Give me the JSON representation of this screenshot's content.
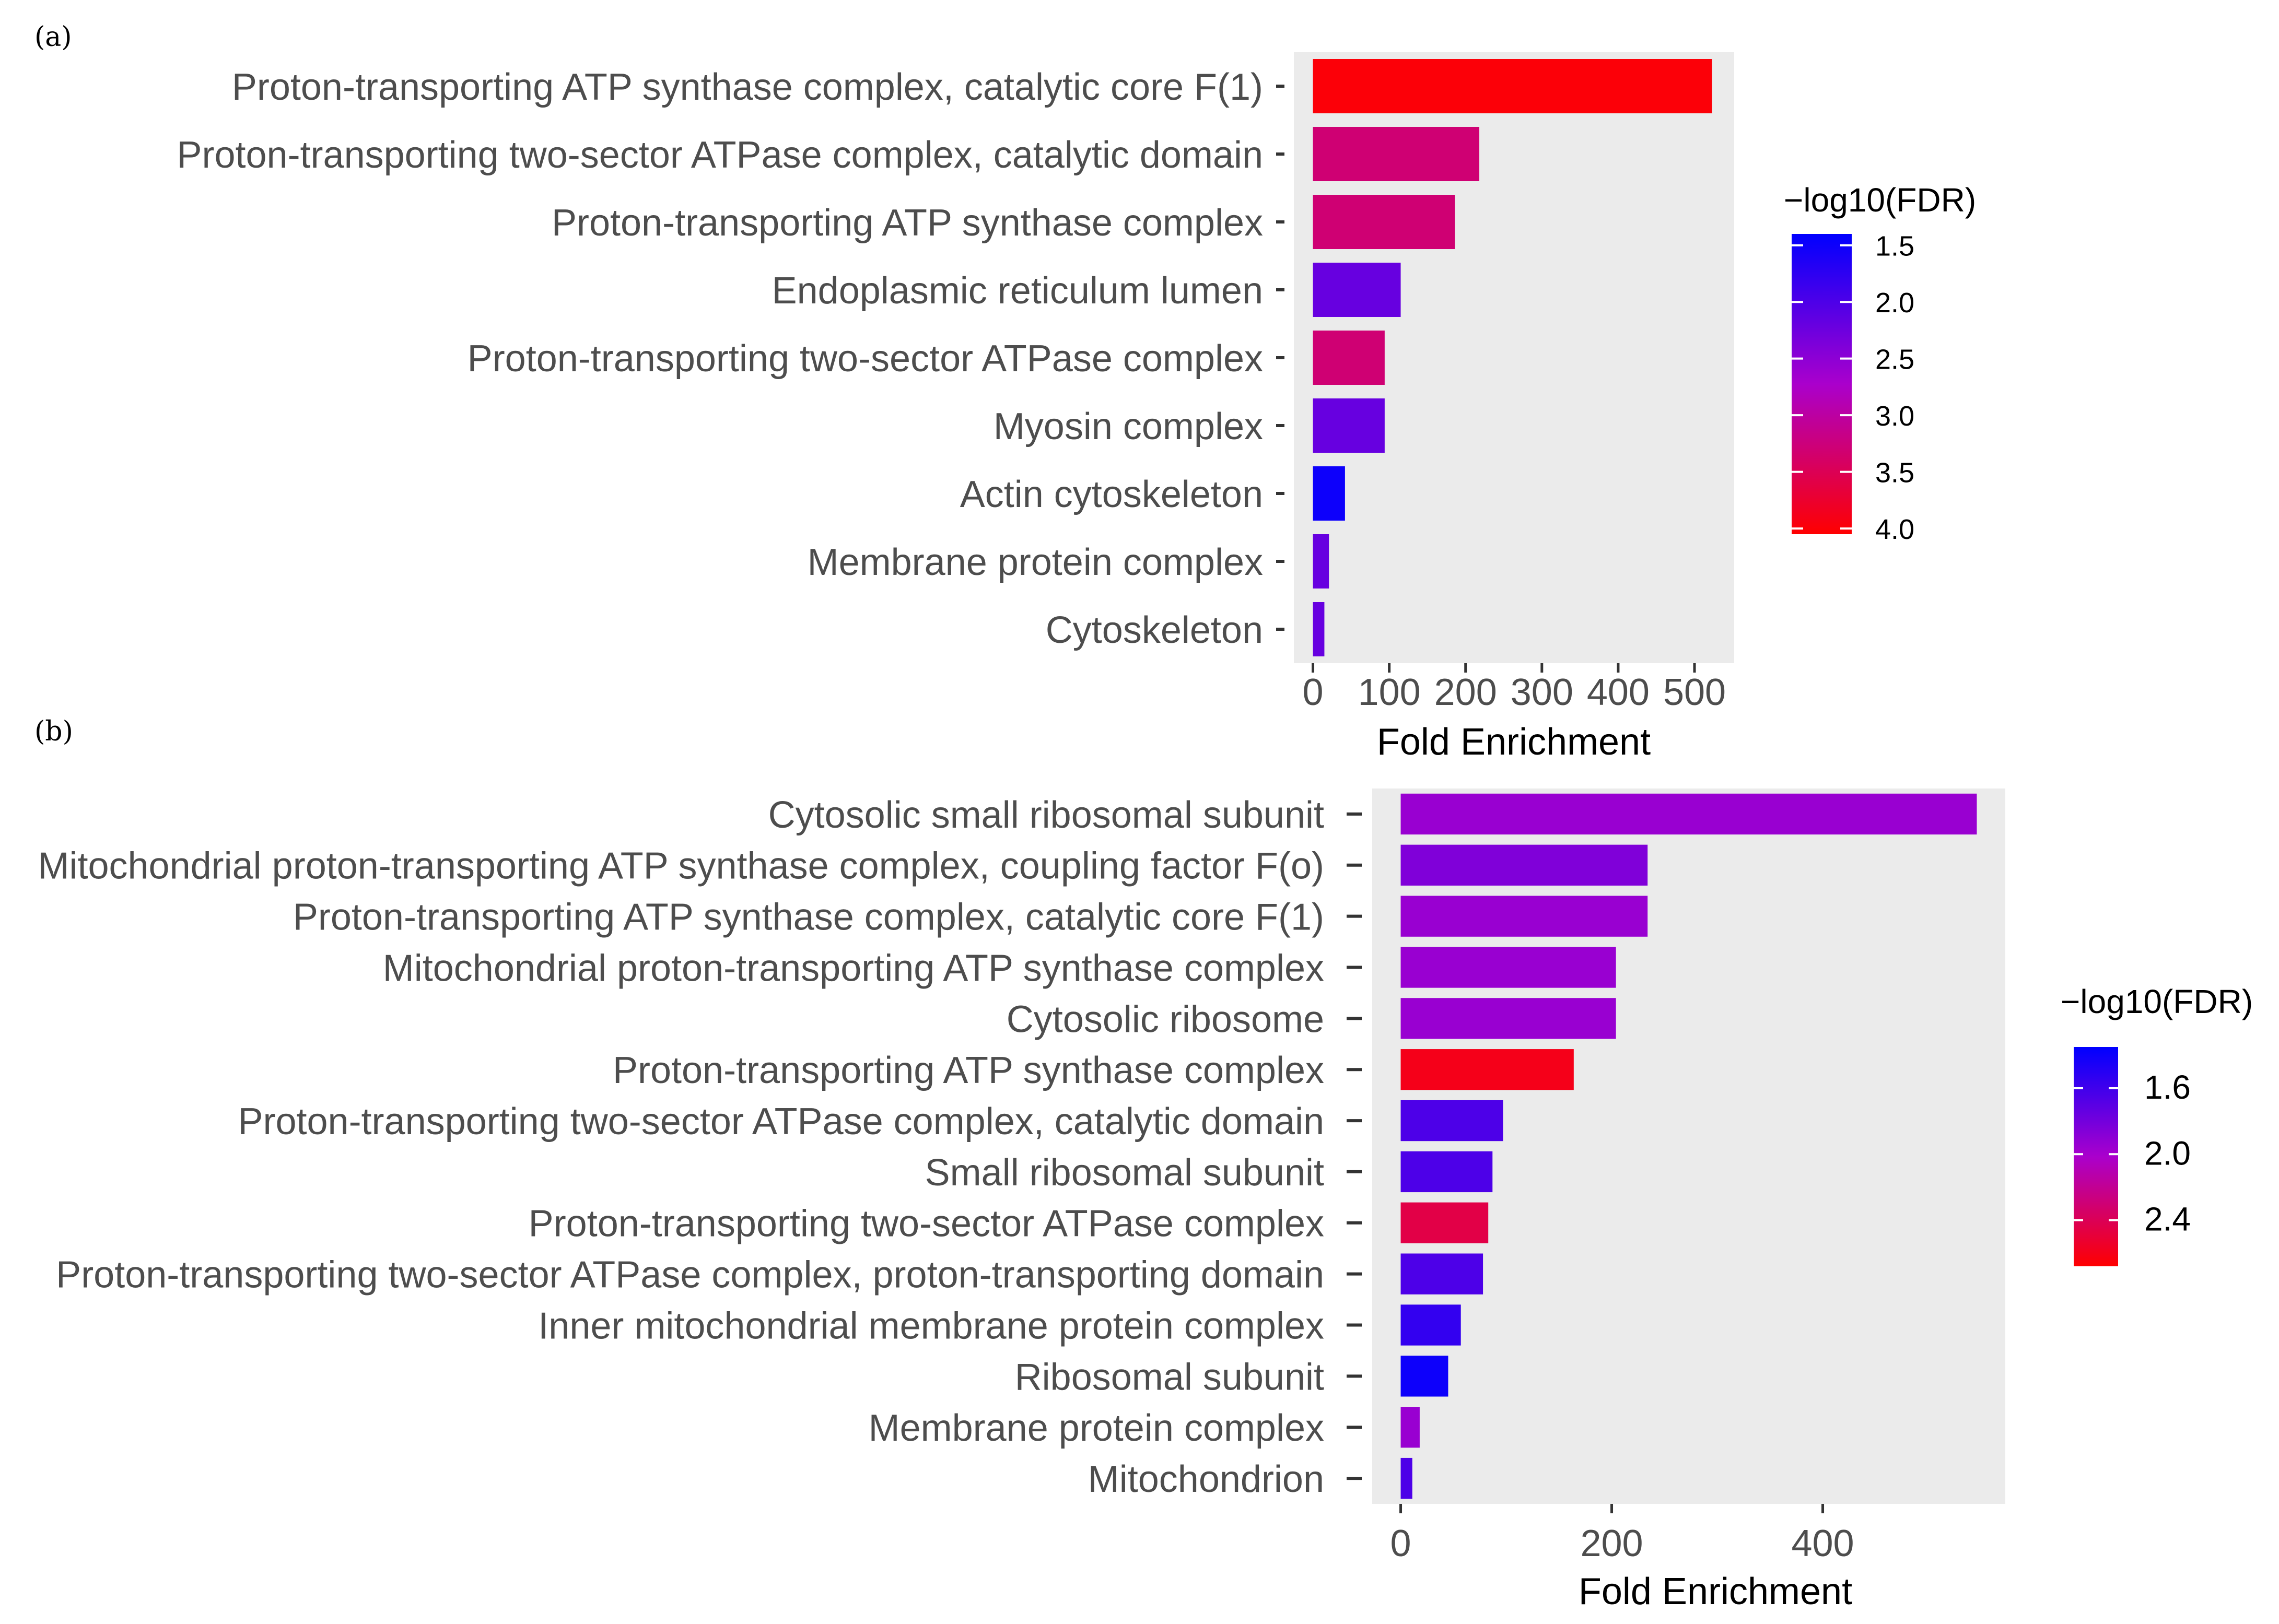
{
  "chart_data": [
    {
      "panel_label": "(a)",
      "type": "bar",
      "orientation": "horizontal",
      "categories": [
        "Proton-transporting ATP synthase complex, catalytic core F(1)",
        "Proton-transporting two-sector ATPase complex, catalytic domain",
        "Proton-transporting ATP synthase complex",
        "Endoplasmic reticulum lumen",
        "Proton-transporting two-sector ATPase complex",
        "Myosin complex",
        "Actin cytoskeleton",
        "Membrane protein complex",
        "Cytoskeleton"
      ],
      "values": [
        523,
        218,
        186,
        115,
        94,
        94,
        42,
        21,
        15
      ],
      "color_values": [
        4.0,
        3.3,
        3.3,
        2.2,
        3.3,
        2.2,
        1.5,
        2.2,
        2.2
      ],
      "xlabel": "Fold Enrichment",
      "xlim": [
        -25,
        552
      ],
      "xticks": [
        0,
        100,
        200,
        300,
        400,
        500
      ],
      "xtick_labels": [
        "0",
        "100",
        "200",
        "300",
        "400",
        "500"
      ],
      "legend": {
        "title": "−log10(FDR)",
        "range": [
          1.4,
          4.05
        ],
        "ticks": [
          1.5,
          2.0,
          2.5,
          3.0,
          3.5,
          4.0
        ],
        "tick_labels": [
          "1.5",
          "2.0",
          "2.5",
          "3.0",
          "3.5",
          "4.0"
        ],
        "low_color": "#0000ff",
        "mid_color": "#aa00cc",
        "high_color": "#ff0000"
      }
    },
    {
      "panel_label": "(b)",
      "type": "bar",
      "orientation": "horizontal",
      "categories": [
        "Cytosolic small ribosomal subunit",
        "Mitochondrial proton-transporting ATP synthase complex, coupling factor F(o)",
        "Proton-transporting ATP synthase complex, catalytic core F(1)",
        "Mitochondrial proton-transporting ATP synthase complex",
        "Cytosolic ribosome",
        "Proton-transporting ATP synthase complex",
        "Proton-transporting two-sector ATPase complex, catalytic domain",
        "Small ribosomal subunit",
        "Proton-transporting two-sector ATPase complex",
        "Proton-transporting two-sector ATPase complex, proton-transporting domain",
        "Inner mitochondrial membrane protein complex",
        "Ribosomal subunit",
        "Membrane protein complex",
        "Mitochondrion"
      ],
      "values": [
        546,
        234,
        234,
        204,
        204,
        164,
        97,
        87,
        83,
        78,
        57,
        45,
        18,
        11
      ],
      "color_values": [
        1.95,
        1.85,
        1.95,
        1.95,
        1.95,
        2.6,
        1.65,
        1.65,
        2.45,
        1.65,
        1.55,
        1.4,
        1.95,
        1.65
      ],
      "xlabel": "Fold Enrichment",
      "xlim": [
        -27,
        573
      ],
      "xticks": [
        0,
        200,
        400
      ],
      "xtick_labels": [
        "0",
        "200",
        "400"
      ],
      "legend": {
        "title": "−log10(FDR)",
        "range": [
          1.35,
          2.68
        ],
        "ticks": [
          1.6,
          2.0,
          2.4
        ],
        "tick_labels": [
          "1.6",
          "2.0",
          "2.4"
        ],
        "low_color": "#0000ff",
        "mid_color": "#aa00cc",
        "high_color": "#ff0000"
      }
    }
  ]
}
